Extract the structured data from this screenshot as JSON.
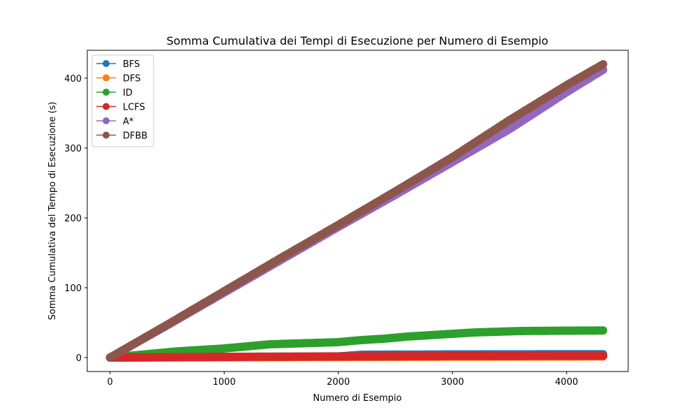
{
  "chart_data": {
    "type": "line",
    "title": "Somma Cumulativa dei Tempi di Esecuzione per Numero di Esempio",
    "xlabel": "Numero di Esempio",
    "ylabel": "Somma Cumulativa del Tempo di Esecuzione (s)",
    "xlim": [
      -200,
      4540
    ],
    "ylim": [
      -20,
      440
    ],
    "xticks": [
      0,
      1000,
      2000,
      3000,
      4000
    ],
    "yticks": [
      0,
      100,
      200,
      300,
      400
    ],
    "grid": false,
    "legend_position": "top-left",
    "series": [
      {
        "name": "BFS",
        "color": "#1f77b4",
        "x": [
          0,
          500,
          1000,
          1500,
          2000,
          2200,
          2500,
          3000,
          3500,
          4000,
          4320
        ],
        "y": [
          0,
          0.3,
          0.8,
          1.2,
          1.6,
          4.0,
          4.2,
          4.5,
          4.6,
          4.7,
          4.8
        ]
      },
      {
        "name": "DFS",
        "color": "#ff7f0e",
        "x": [
          0,
          500,
          1000,
          1500,
          2000,
          2500,
          3000,
          3500,
          4000,
          4320
        ],
        "y": [
          0,
          0.2,
          0.4,
          0.6,
          0.8,
          1.0,
          1.2,
          1.4,
          1.5,
          1.6
        ]
      },
      {
        "name": "ID",
        "color": "#2ca02c",
        "x": [
          0,
          200,
          400,
          600,
          800,
          1000,
          1200,
          1400,
          1600,
          1800,
          2000,
          2200,
          2400,
          2600,
          2800,
          3000,
          3200,
          3400,
          3600,
          3800,
          4000,
          4200,
          4320
        ],
        "y": [
          0,
          3,
          6,
          9,
          11,
          13,
          16,
          19,
          20,
          21,
          22,
          25,
          27,
          30,
          32,
          34,
          36,
          37,
          38,
          38.3,
          38.5,
          38.6,
          38.7
        ]
      },
      {
        "name": "LCFS",
        "color": "#d62728",
        "x": [
          0,
          500,
          1000,
          1500,
          2000,
          2500,
          3000,
          3500,
          4000,
          4320
        ],
        "y": [
          0,
          0.5,
          1.0,
          1.3,
          1.6,
          1.9,
          2.2,
          2.4,
          2.6,
          2.7
        ]
      },
      {
        "name": "A*",
        "color": "#9467bd",
        "x": [
          0,
          500,
          1000,
          1500,
          2000,
          2500,
          3000,
          3500,
          4000,
          4320
        ],
        "y": [
          0,
          46,
          93,
          140,
          187,
          233,
          280,
          327,
          380,
          412
        ]
      },
      {
        "name": "DFBB",
        "color": "#8c564b",
        "x": [
          0,
          500,
          1000,
          1500,
          2000,
          2500,
          3000,
          3500,
          4000,
          4320
        ],
        "y": [
          0,
          47,
          95,
          143,
          190,
          238,
          287,
          340,
          390,
          420
        ]
      }
    ]
  }
}
